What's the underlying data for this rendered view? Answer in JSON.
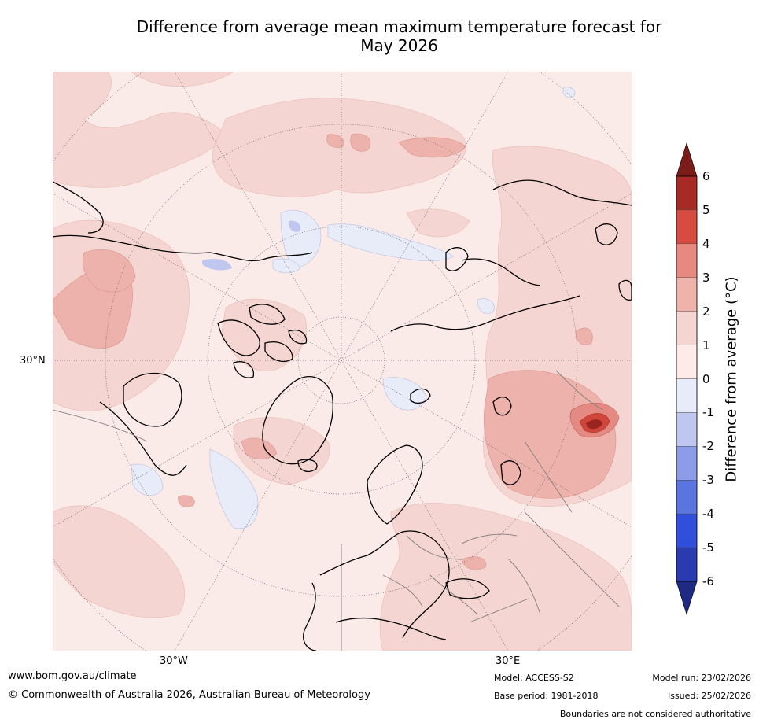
{
  "title_line1": "Difference from average mean maximum temperature forecast for",
  "title_line2": "May 2026",
  "axis_labels": {
    "lat_30n": "30°N",
    "lon_30w": "30°W",
    "lon_30e": "30°E"
  },
  "colorbar": {
    "label": "Difference from average (°C)",
    "ticks": [
      "6",
      "5",
      "4",
      "3",
      "2",
      "1",
      "0",
      "-1",
      "-2",
      "-3",
      "-4",
      "-5",
      "-6"
    ],
    "colors": [
      "#7b1c19",
      "#a82a25",
      "#d84b40",
      "#e88981",
      "#f0b3ac",
      "#f5d5d1",
      "#fcebe8",
      "#e8ebf8",
      "#bfc6ef",
      "#8c9ce8",
      "#5a74e0",
      "#2f4fdc",
      "#2a3ab0",
      "#1f2a84"
    ]
  },
  "footer": {
    "website": "www.bom.gov.au/climate",
    "copyright": "© Commonwealth of Australia 2026, Australian Bureau of Meteorology",
    "model": "Model: ACCESS-S2",
    "base_period": "Base period: 1981-2018",
    "model_run": "Model run: 23/02/2026",
    "issued": "Issued: 25/02/2026",
    "disclaimer": "Boundaries are not considered authoritative"
  }
}
